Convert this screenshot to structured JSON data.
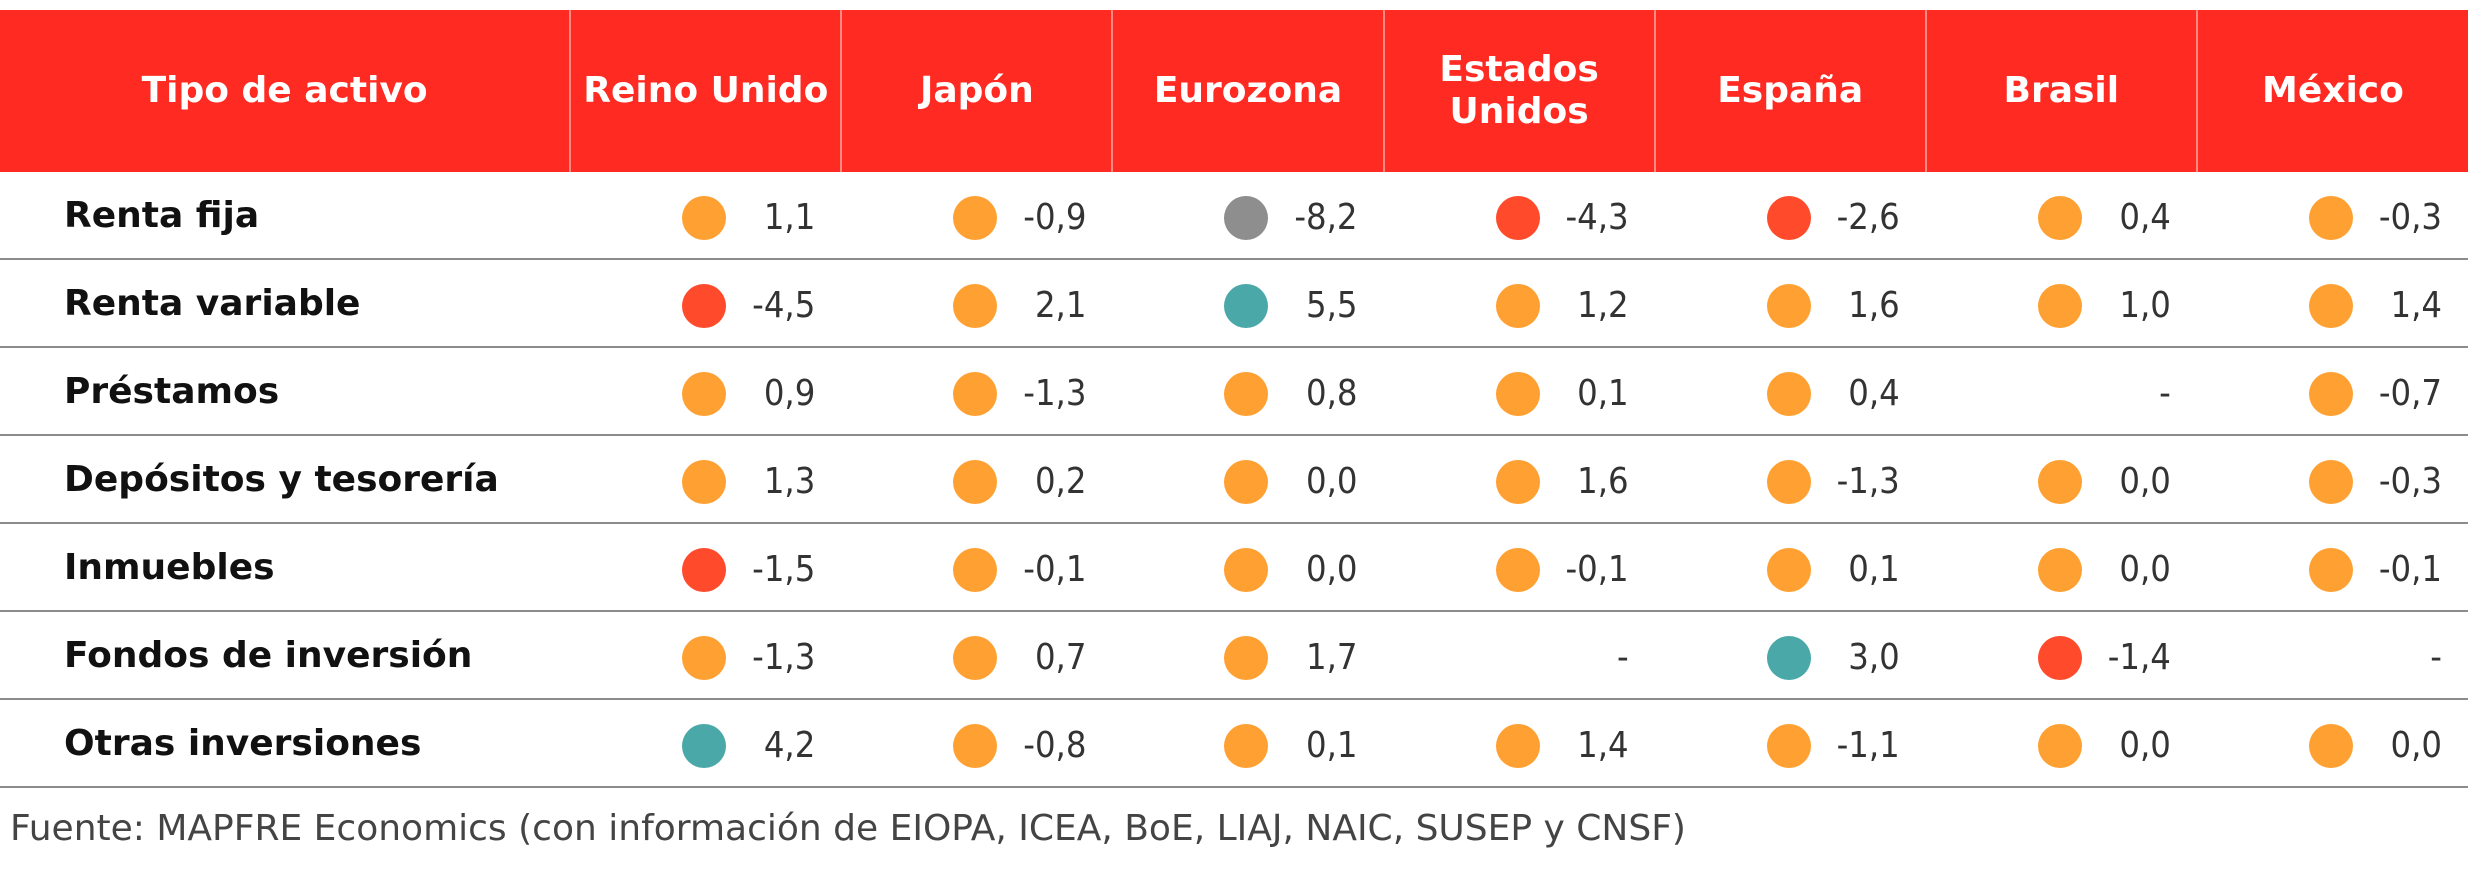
{
  "table": {
    "headers": [
      "Tipo de activo",
      "Reino Unido",
      "Japón",
      "Eurozona",
      "Estados Unidos",
      "España",
      "Brasil",
      "México"
    ],
    "rows": [
      {
        "label": "Renta fija",
        "cells": [
          {
            "value": "1,1",
            "color": "orange"
          },
          {
            "value": "-0,9",
            "color": "orange"
          },
          {
            "value": "-8,2",
            "color": "gray"
          },
          {
            "value": "-4,3",
            "color": "red"
          },
          {
            "value": "-2,6",
            "color": "red"
          },
          {
            "value": "0,4",
            "color": "orange"
          },
          {
            "value": "-0,3",
            "color": "orange"
          }
        ]
      },
      {
        "label": "Renta variable",
        "cells": [
          {
            "value": "-4,5",
            "color": "red"
          },
          {
            "value": "2,1",
            "color": "orange"
          },
          {
            "value": "5,5",
            "color": "teal"
          },
          {
            "value": "1,2",
            "color": "orange"
          },
          {
            "value": "1,6",
            "color": "orange"
          },
          {
            "value": "1,0",
            "color": "orange"
          },
          {
            "value": "1,4",
            "color": "orange"
          }
        ]
      },
      {
        "label": "Préstamos",
        "cells": [
          {
            "value": "0,9",
            "color": "orange"
          },
          {
            "value": "-1,3",
            "color": "orange"
          },
          {
            "value": "0,8",
            "color": "orange"
          },
          {
            "value": "0,1",
            "color": "orange"
          },
          {
            "value": "0,4",
            "color": "orange"
          },
          {
            "value": "-",
            "color": null
          },
          {
            "value": "-0,7",
            "color": "orange"
          }
        ]
      },
      {
        "label": "Depósitos y tesorería",
        "cells": [
          {
            "value": "1,3",
            "color": "orange"
          },
          {
            "value": "0,2",
            "color": "orange"
          },
          {
            "value": "0,0",
            "color": "orange"
          },
          {
            "value": "1,6",
            "color": "orange"
          },
          {
            "value": "-1,3",
            "color": "orange"
          },
          {
            "value": "0,0",
            "color": "orange"
          },
          {
            "value": "-0,3",
            "color": "orange"
          }
        ]
      },
      {
        "label": "Inmuebles",
        "cells": [
          {
            "value": "-1,5",
            "color": "red"
          },
          {
            "value": "-0,1",
            "color": "orange"
          },
          {
            "value": "0,0",
            "color": "orange"
          },
          {
            "value": "-0,1",
            "color": "orange"
          },
          {
            "value": "0,1",
            "color": "orange"
          },
          {
            "value": "0,0",
            "color": "orange"
          },
          {
            "value": "-0,1",
            "color": "orange"
          }
        ]
      },
      {
        "label": "Fondos de inversión",
        "cells": [
          {
            "value": "-1,3",
            "color": "orange"
          },
          {
            "value": "0,7",
            "color": "orange"
          },
          {
            "value": "1,7",
            "color": "orange"
          },
          {
            "value": "-",
            "color": null
          },
          {
            "value": "3,0",
            "color": "teal"
          },
          {
            "value": "-1,4",
            "color": "red"
          },
          {
            "value": "-",
            "color": null
          }
        ]
      },
      {
        "label": "Otras inversiones",
        "cells": [
          {
            "value": "4,2",
            "color": "teal"
          },
          {
            "value": "-0,8",
            "color": "orange"
          },
          {
            "value": "0,1",
            "color": "orange"
          },
          {
            "value": "1,4",
            "color": "orange"
          },
          {
            "value": "-1,1",
            "color": "orange"
          },
          {
            "value": "0,0",
            "color": "orange"
          },
          {
            "value": "0,0",
            "color": "orange"
          }
        ]
      }
    ]
  },
  "colors": {
    "header_bg": "#ff2b23",
    "orange": "#ffa032",
    "red": "#ff4b2b",
    "gray": "#8e8e8e",
    "teal": "#4aa8a8"
  },
  "source": "Fuente: MAPFRE Economics (con información de EIOPA, ICEA, BoE, LIAJ, NAIC, SUSEP y CNSF)"
}
